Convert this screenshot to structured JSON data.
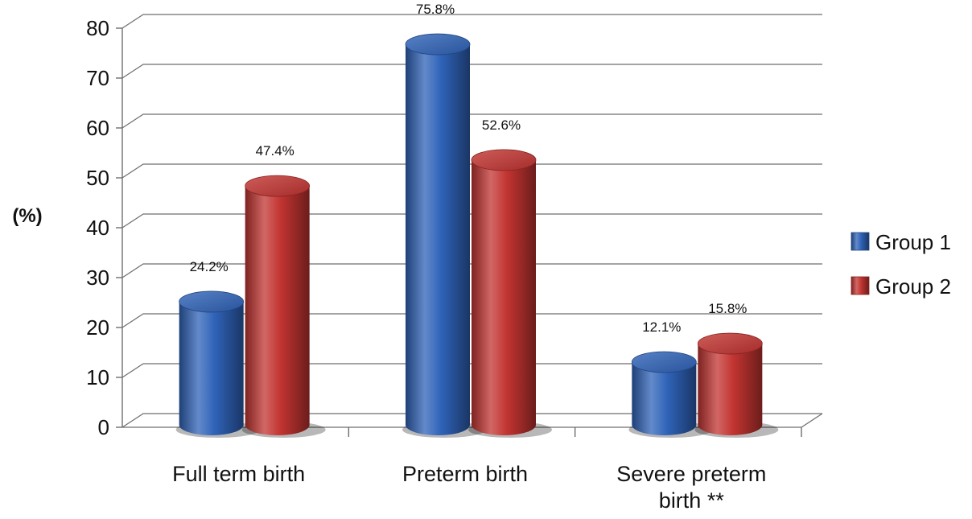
{
  "chart_data": {
    "type": "bar",
    "categories": [
      [
        "Full term birth"
      ],
      [
        "Preterm birth"
      ],
      [
        "Severe preterm",
        "birth **"
      ]
    ],
    "series": [
      {
        "name": "Group 1",
        "color": "#2f63b8",
        "values": [
          24.2,
          75.8,
          12.1
        ],
        "labels": [
          "24.2%",
          "75.8%",
          "12.1%"
        ]
      },
      {
        "name": "Group 2",
        "color": "#c23431",
        "values": [
          47.4,
          52.6,
          15.8
        ],
        "labels": [
          "47.4%",
          "52.6%",
          "15.8%"
        ]
      }
    ],
    "ylabel": "(%)",
    "ylim": [
      0,
      80
    ],
    "yticks": [
      0,
      10,
      20,
      30,
      40,
      50,
      60,
      70,
      80
    ],
    "grid": true,
    "legend_position": "right",
    "style": "3d-cylinder"
  }
}
